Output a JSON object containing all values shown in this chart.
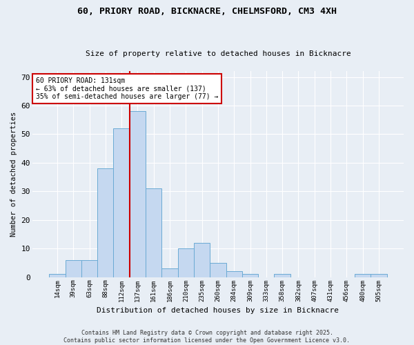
{
  "title1": "60, PRIORY ROAD, BICKNACRE, CHELMSFORD, CM3 4XH",
  "title2": "Size of property relative to detached houses in Bicknacre",
  "xlabel": "Distribution of detached houses by size in Bicknacre",
  "ylabel": "Number of detached properties",
  "bar_labels": [
    "14sqm",
    "39sqm",
    "63sqm",
    "88sqm",
    "112sqm",
    "137sqm",
    "161sqm",
    "186sqm",
    "210sqm",
    "235sqm",
    "260sqm",
    "284sqm",
    "309sqm",
    "333sqm",
    "358sqm",
    "382sqm",
    "407sqm",
    "431sqm",
    "456sqm",
    "480sqm",
    "505sqm"
  ],
  "bar_values": [
    1,
    6,
    6,
    38,
    52,
    58,
    31,
    3,
    10,
    12,
    5,
    2,
    1,
    0,
    1,
    0,
    0,
    0,
    0,
    1,
    1
  ],
  "bar_color": "#c5d8f0",
  "bar_edge_color": "#6aaad4",
  "vline_color": "#cc0000",
  "ylim": [
    0,
    72
  ],
  "yticks": [
    0,
    10,
    20,
    30,
    40,
    50,
    60,
    70
  ],
  "annotation_text": "60 PRIORY ROAD: 131sqm\n← 63% of detached houses are smaller (137)\n35% of semi-detached houses are larger (77) →",
  "annotation_box_color": "#ffffff",
  "annotation_box_edge": "#cc0000",
  "footer1": "Contains HM Land Registry data © Crown copyright and database right 2025.",
  "footer2": "Contains public sector information licensed under the Open Government Licence v3.0.",
  "fig_background": "#e8eef5",
  "plot_background": "#e8eef5"
}
